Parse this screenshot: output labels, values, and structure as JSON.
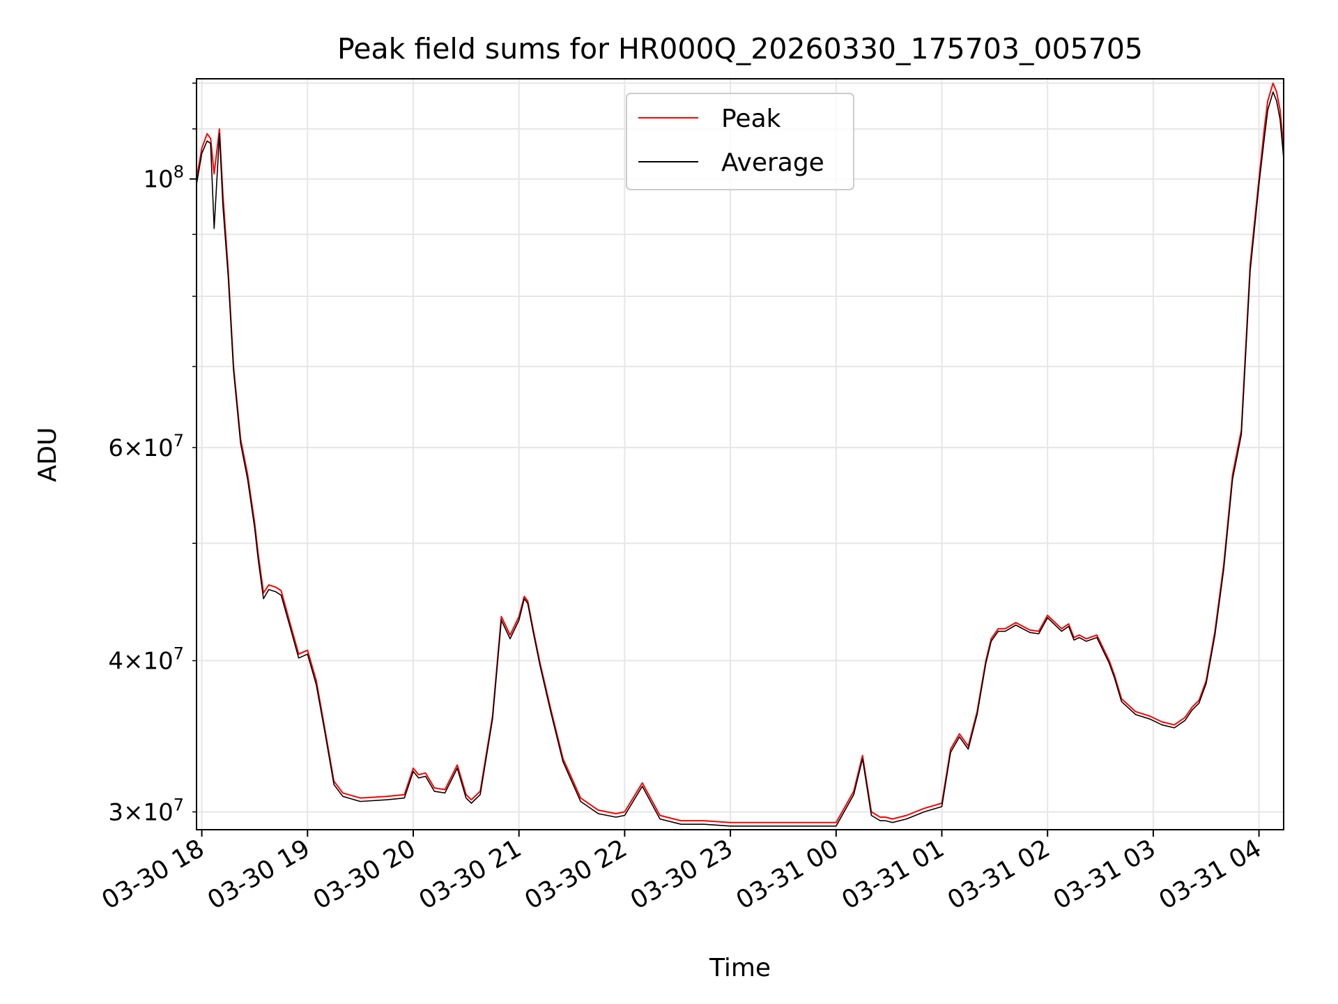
{
  "chart_data": {
    "type": "line",
    "title": "Peak field sums for HR000Q_20260330_175703_005705",
    "xlabel": "Time",
    "ylabel": "ADU",
    "y_scale": "log",
    "ylim": [
      29000000,
      121000000
    ],
    "xlim": [
      "03-30 17:57",
      "03-31 04:14"
    ],
    "grid": true,
    "legend_position": "upper center",
    "x_ticks": [
      "03-30 18",
      "03-30 19",
      "03-30 20",
      "03-30 21",
      "03-30 22",
      "03-30 23",
      "03-31 00",
      "03-31 01",
      "03-31 02",
      "03-31 03",
      "03-31 04"
    ],
    "y_ticks_major": [
      "10^8"
    ],
    "y_ticks_minor": [
      "3 × 10^7",
      "4 × 10^7",
      "6 × 10^7"
    ],
    "series": [
      {
        "name": "Peak",
        "color": "#ff0000",
        "x": [
          "03-30 17:57",
          "03-30 18:00",
          "03-30 18:03",
          "03-30 18:05",
          "03-30 18:07",
          "03-30 18:10",
          "03-30 18:12",
          "03-30 18:15",
          "03-30 18:18",
          "03-30 18:22",
          "03-30 18:26",
          "03-30 18:30",
          "03-30 18:32",
          "03-30 18:35",
          "03-30 18:38",
          "03-30 18:42",
          "03-30 18:45",
          "03-30 18:50",
          "03-30 18:55",
          "03-30 19:00",
          "03-30 19:05",
          "03-30 19:10",
          "03-30 19:15",
          "03-30 19:20",
          "03-30 19:30",
          "03-30 19:45",
          "03-30 19:55",
          "03-30 20:00",
          "03-30 20:03",
          "03-30 20:07",
          "03-30 20:12",
          "03-30 20:18",
          "03-30 20:25",
          "03-30 20:30",
          "03-30 20:33",
          "03-30 20:38",
          "03-30 20:45",
          "03-30 20:50",
          "03-30 20:55",
          "03-30 21:00",
          "03-30 21:03",
          "03-30 21:05",
          "03-30 21:08",
          "03-30 21:12",
          "03-30 21:18",
          "03-30 21:25",
          "03-30 21:35",
          "03-30 21:45",
          "03-30 21:55",
          "03-30 22:00",
          "03-30 22:10",
          "03-30 22:20",
          "03-30 22:28",
          "03-30 22:32",
          "03-30 22:36",
          "03-30 22:45",
          "03-30 23:00",
          "03-30 23:15",
          "03-30 23:30",
          "03-30 23:45",
          "03-31 00:00",
          "03-31 00:10",
          "03-31 00:15",
          "03-31 00:20",
          "03-31 00:25",
          "03-31 00:28",
          "03-31 00:32",
          "03-31 00:40",
          "03-31 00:50",
          "03-31 01:00",
          "03-31 01:05",
          "03-31 01:10",
          "03-31 01:15",
          "03-31 01:20",
          "03-31 01:25",
          "03-31 01:28",
          "03-31 01:32",
          "03-31 01:36",
          "03-31 01:42",
          "03-31 01:50",
          "03-31 01:55",
          "03-31 02:00",
          "03-31 02:08",
          "03-31 02:12",
          "03-31 02:15",
          "03-31 02:18",
          "03-31 02:22",
          "03-31 02:28",
          "03-31 02:35",
          "03-31 02:38",
          "03-31 02:42",
          "03-31 02:50",
          "03-31 02:58",
          "03-31 03:05",
          "03-31 03:12",
          "03-31 03:18",
          "03-31 03:22",
          "03-31 03:26",
          "03-31 03:30",
          "03-31 03:35",
          "03-31 03:40",
          "03-31 03:45",
          "03-31 03:50",
          "03-31 03:55",
          "03-31 04:00",
          "03-31 04:03",
          "03-31 04:05",
          "03-31 04:08",
          "03-31 04:10",
          "03-31 04:12",
          "03-31 04:14"
        ],
        "y": [
          100000000,
          106000000,
          109000000,
          108000000,
          101000000,
          110000000,
          97000000,
          84000000,
          70000000,
          61000000,
          57000000,
          52000000,
          49000000,
          45500000,
          46200000,
          46000000,
          45700000,
          43000000,
          40500000,
          40800000,
          38500000,
          35000000,
          31800000,
          31100000,
          30800000,
          30900000,
          31000000,
          32600000,
          32200000,
          32300000,
          31400000,
          31300000,
          32800000,
          31000000,
          30700000,
          31200000,
          36000000,
          43500000,
          42000000,
          43500000,
          45200000,
          44800000,
          42500000,
          39800000,
          36500000,
          33200000,
          30800000,
          30100000,
          29900000,
          30000000,
          31700000,
          29800000,
          29600000,
          29500000,
          29500000,
          29500000,
          29400000,
          29400000,
          29400000,
          29400000,
          29400000,
          31200000,
          33400000,
          30000000,
          29700000,
          29700000,
          29600000,
          29800000,
          30200000,
          30500000,
          33800000,
          34800000,
          34000000,
          36300000,
          40000000,
          41700000,
          42500000,
          42500000,
          43000000,
          42400000,
          42300000,
          43600000,
          42500000,
          42900000,
          41800000,
          42000000,
          41700000,
          42000000,
          40000000,
          38900000,
          37200000,
          36300000,
          36000000,
          35600000,
          35400000,
          35900000,
          36600000,
          37100000,
          38500000,
          42300000,
          48000000,
          57000000,
          62000000,
          85000000,
          100000000,
          110000000,
          116000000,
          120000000,
          118000000,
          114000000,
          106000000
        ]
      },
      {
        "name": "Average",
        "color": "#000000",
        "x": [
          "03-30 17:57",
          "03-30 18:00",
          "03-30 18:03",
          "03-30 18:05",
          "03-30 18:07",
          "03-30 18:10",
          "03-30 18:12",
          "03-30 18:15",
          "03-30 18:18",
          "03-30 18:22",
          "03-30 18:26",
          "03-30 18:30",
          "03-30 18:32",
          "03-30 18:35",
          "03-30 18:38",
          "03-30 18:42",
          "03-30 18:45",
          "03-30 18:50",
          "03-30 18:55",
          "03-30 19:00",
          "03-30 19:05",
          "03-30 19:10",
          "03-30 19:15",
          "03-30 19:20",
          "03-30 19:30",
          "03-30 19:45",
          "03-30 19:55",
          "03-30 20:00",
          "03-30 20:03",
          "03-30 20:07",
          "03-30 20:12",
          "03-30 20:18",
          "03-30 20:25",
          "03-30 20:30",
          "03-30 20:33",
          "03-30 20:38",
          "03-30 20:45",
          "03-30 20:50",
          "03-30 20:55",
          "03-30 21:00",
          "03-30 21:03",
          "03-30 21:05",
          "03-30 21:08",
          "03-30 21:12",
          "03-30 21:18",
          "03-30 21:25",
          "03-30 21:35",
          "03-30 21:45",
          "03-30 21:55",
          "03-30 22:00",
          "03-30 22:10",
          "03-30 22:20",
          "03-30 22:28",
          "03-30 22:32",
          "03-30 22:36",
          "03-30 22:45",
          "03-30 23:00",
          "03-30 23:15",
          "03-30 23:30",
          "03-30 23:45",
          "03-31 00:00",
          "03-31 00:10",
          "03-31 00:15",
          "03-31 00:20",
          "03-31 00:25",
          "03-31 00:28",
          "03-31 00:32",
          "03-31 00:40",
          "03-31 00:50",
          "03-31 01:00",
          "03-31 01:05",
          "03-31 01:10",
          "03-31 01:15",
          "03-31 01:20",
          "03-31 01:25",
          "03-31 01:28",
          "03-31 01:32",
          "03-31 01:36",
          "03-31 01:42",
          "03-31 01:50",
          "03-31 01:55",
          "03-31 02:00",
          "03-31 02:08",
          "03-31 02:12",
          "03-31 02:15",
          "03-31 02:18",
          "03-31 02:22",
          "03-31 02:28",
          "03-31 02:35",
          "03-31 02:38",
          "03-31 02:42",
          "03-31 02:50",
          "03-31 02:58",
          "03-31 03:05",
          "03-31 03:12",
          "03-31 03:18",
          "03-31 03:22",
          "03-31 03:26",
          "03-31 03:30",
          "03-31 03:35",
          "03-31 03:40",
          "03-31 03:45",
          "03-31 03:50",
          "03-31 03:55",
          "03-31 04:00",
          "03-31 04:03",
          "03-31 04:05",
          "03-31 04:08",
          "03-31 04:10",
          "03-31 04:12",
          "03-31 04:14"
        ],
        "y": [
          99000000,
          105000000,
          107500000,
          107000000,
          91000000,
          109000000,
          95000000,
          83000000,
          69500000,
          60500000,
          56500000,
          51500000,
          48500000,
          45000000,
          45800000,
          45600000,
          45300000,
          42700000,
          40200000,
          40500000,
          38200000,
          34800000,
          31600000,
          30900000,
          30600000,
          30700000,
          30800000,
          32400000,
          32000000,
          32100000,
          31200000,
          31100000,
          32600000,
          30800000,
          30500000,
          31000000,
          35800000,
          43200000,
          41700000,
          43200000,
          45000000,
          44600000,
          42300000,
          39600000,
          36300000,
          33000000,
          30600000,
          29900000,
          29700000,
          29800000,
          31500000,
          29600000,
          29400000,
          29300000,
          29300000,
          29300000,
          29200000,
          29200000,
          29200000,
          29200000,
          29200000,
          31000000,
          33200000,
          29800000,
          29500000,
          29500000,
          29400000,
          29600000,
          30000000,
          30300000,
          33600000,
          34600000,
          33800000,
          36100000,
          39800000,
          41500000,
          42300000,
          42300000,
          42800000,
          42200000,
          42100000,
          43400000,
          42300000,
          42700000,
          41600000,
          41800000,
          41500000,
          41800000,
          39800000,
          38700000,
          37000000,
          36100000,
          35800000,
          35400000,
          35200000,
          35700000,
          36400000,
          36900000,
          38300000,
          42000000,
          47600000,
          56500000,
          61500000,
          84000000,
          99000000,
          108000000,
          114000000,
          118000000,
          116000000,
          112000000,
          104000000
        ]
      }
    ]
  }
}
